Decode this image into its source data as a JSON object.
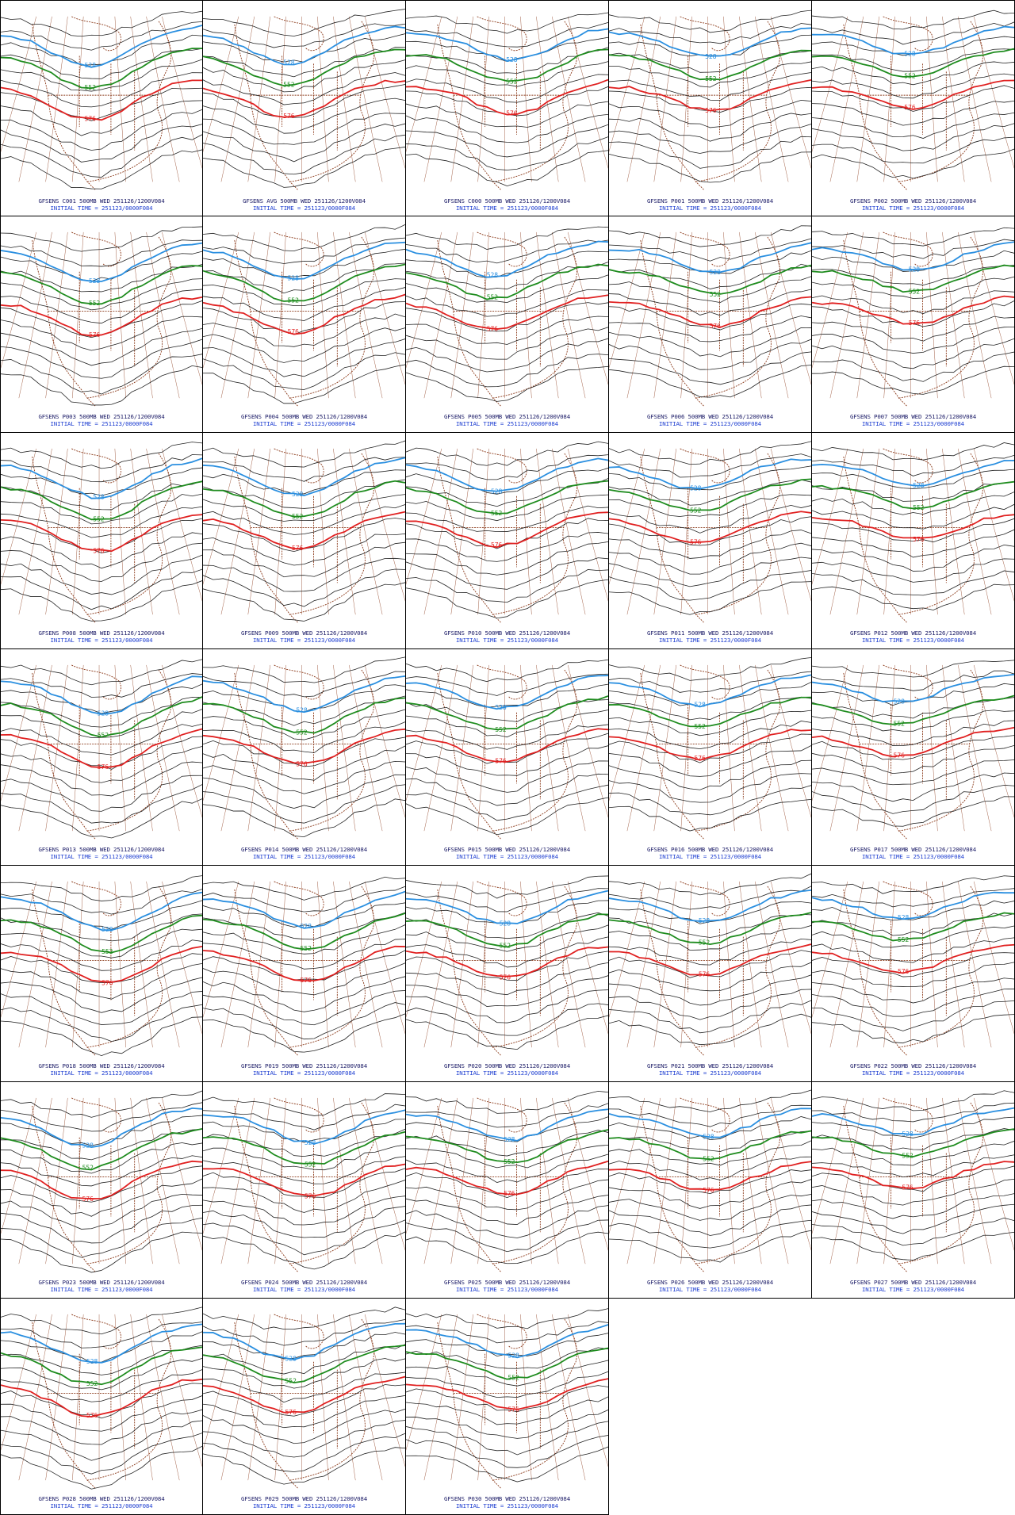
{
  "layout": {
    "columns": 5,
    "rows": 7
  },
  "colors": {
    "contour": "#222222",
    "coast": "#8b3a1a",
    "contour_528": "#2a8fe0",
    "contour_552": "#1e8c1e",
    "contour_576": "#e02020",
    "caption_line1": "#1a1a66",
    "caption_line2": "#1f3fd1"
  },
  "contour_labels": {
    "blue": "528",
    "green": "552",
    "red": "576"
  },
  "caption_suffix": "500MB WED 251126/1200V084",
  "initial_time": "INITIAL TIME = 251123/0000F084",
  "panels": [
    {
      "member": "C001",
      "title": "GFSENS C001 500MB WED 251126/1200V084"
    },
    {
      "member": "AVG",
      "title": "GFSENS AVG 500MB WED 251126/1200V084"
    },
    {
      "member": "C000",
      "title": "GFSENS C000 500MB WED 251126/1200V084"
    },
    {
      "member": "P001",
      "title": "GFSENS P001 500MB WED 251126/1200V084"
    },
    {
      "member": "P002",
      "title": "GFSENS P002 500MB WED 251126/1200V084"
    },
    {
      "member": "P003",
      "title": "GFSENS P003 500MB WED 251126/1200V084"
    },
    {
      "member": "P004",
      "title": "GFSENS P004 500MB WED 251126/1200V084"
    },
    {
      "member": "P005",
      "title": "GFSENS P005 500MB WED 251126/1200V084"
    },
    {
      "member": "P006",
      "title": "GFSENS P006 500MB WED 251126/1200V084"
    },
    {
      "member": "P007",
      "title": "GFSENS P007 500MB WED 251126/1200V084"
    },
    {
      "member": "P008",
      "title": "GFSENS P008 500MB WED 251126/1200V084"
    },
    {
      "member": "P009",
      "title": "GFSENS P009 500MB WED 251126/1200V084"
    },
    {
      "member": "P010",
      "title": "GFSENS P010 500MB WED 251126/1200V084"
    },
    {
      "member": "P011",
      "title": "GFSENS P011 500MB WED 251126/1200V084"
    },
    {
      "member": "P012",
      "title": "GFSENS P012 500MB WED 251126/1200V084"
    },
    {
      "member": "P013",
      "title": "GFSENS P013 500MB WED 251126/1200V084"
    },
    {
      "member": "P014",
      "title": "GFSENS P014 500MB WED 251126/1200V084"
    },
    {
      "member": "P015",
      "title": "GFSENS P015 500MB WED 251126/1200V084"
    },
    {
      "member": "P016",
      "title": "GFSENS P016 500MB WED 251126/1200V084"
    },
    {
      "member": "P017",
      "title": "GFSENS P017 500MB WED 251126/1200V084"
    },
    {
      "member": "P018",
      "title": "GFSENS P018 500MB WED 251126/1200V084"
    },
    {
      "member": "P019",
      "title": "GFSENS P019 500MB WED 251126/1200V084"
    },
    {
      "member": "P020",
      "title": "GFSENS P020 500MB WED 251126/1200V084"
    },
    {
      "member": "P021",
      "title": "GFSENS P021 500MB WED 251126/1200V084"
    },
    {
      "member": "P022",
      "title": "GFSENS P022 500MB WED 251126/1200V084"
    },
    {
      "member": "P023",
      "title": "GFSENS P023 500MB WED 251126/1200V084"
    },
    {
      "member": "P024",
      "title": "GFSENS P024 500MB WED 251126/1200V084"
    },
    {
      "member": "P025",
      "title": "GFSENS P025 500MB WED 251126/1200V084"
    },
    {
      "member": "P026",
      "title": "GFSENS P026 500MB WED 251126/1200V084"
    },
    {
      "member": "P027",
      "title": "GFSENS P027 500MB WED 251126/1200V084"
    },
    {
      "member": "P028",
      "title": "GFSENS P028 500MB WED 251126/1200V084"
    },
    {
      "member": "P029",
      "title": "GFSENS P029 500MB WED 251126/1200V084"
    },
    {
      "member": "P030",
      "title": "GFSENS P030 500MB WED 251126/1200V084"
    }
  ]
}
